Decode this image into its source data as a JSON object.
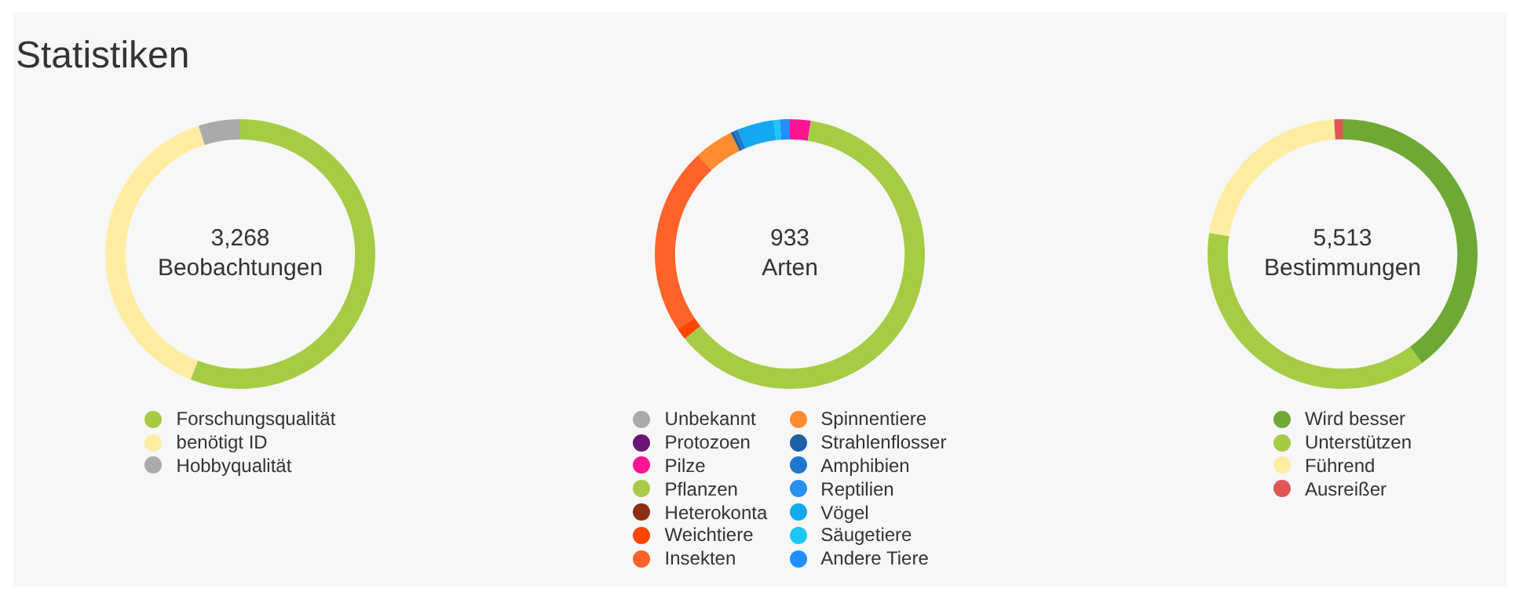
{
  "chart_data": [
    {
      "type": "donut",
      "title": "Statistiken",
      "annotations": [
        "3,268",
        "Beobachtungen"
      ],
      "categories": [
        "Forschungsqualität",
        "benötigt ID",
        "Hobbyqualität"
      ],
      "values": [
        56,
        39,
        5
      ],
      "colors": [
        "#a6cb45",
        "#feeca1",
        "#aaaaaa"
      ],
      "legend": "bottom"
    },
    {
      "type": "donut",
      "annotations": [
        "933",
        "Arten"
      ],
      "categories": [
        "Unbekannt",
        "Protozoen",
        "Pilze",
        "Pflanzen",
        "Heterokonta",
        "Weichtiere",
        "Insekten",
        "Spinnentiere",
        "Strahlenflosser",
        "Amphibien",
        "Reptilien",
        "Vögel",
        "Säugetiere",
        "Andere Tiere"
      ],
      "values": [
        0,
        0,
        2.5,
        61.7,
        0,
        1.4,
        22.5,
        4.7,
        0.4,
        0.5,
        0,
        4.4,
        0.7,
        1.2
      ],
      "colors": [
        "#aaaaaa",
        "#691776",
        "#ff1493",
        "#a6cb45",
        "#8b2e13",
        "#ff4500",
        "#ff6329",
        "#ff8c2f",
        "#1f5fa5",
        "#1e78cf",
        "#2591f0",
        "#13a8f0",
        "#1cc6f5",
        "#1e90ff"
      ],
      "legend": "bottom"
    },
    {
      "type": "donut",
      "annotations": [
        "5,513",
        "Bestimmungen"
      ],
      "categories": [
        "Wird besser",
        "Unterstützen",
        "Führend",
        "Ausreißer"
      ],
      "values": [
        40,
        37.5,
        21.5,
        1
      ],
      "colors": [
        "#6ea936",
        "#a6cb45",
        "#feeca1",
        "#e05555"
      ],
      "legend": "bottom"
    }
  ]
}
